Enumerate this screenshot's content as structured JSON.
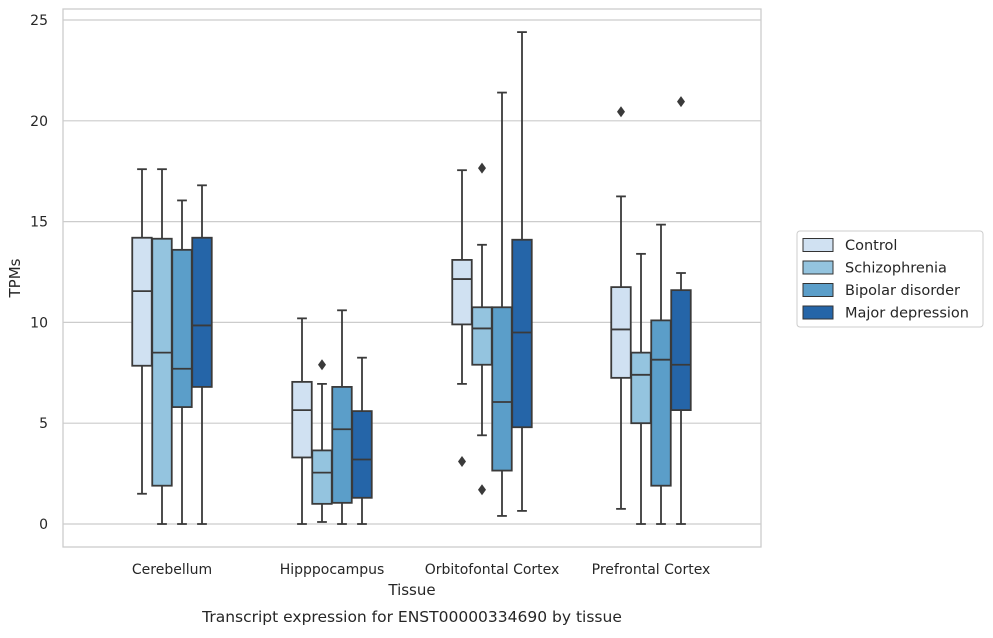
{
  "chart_data": {
    "type": "box",
    "caption": "Transcript expression for ENST00000334690 by tissue",
    "xlabel": "Tissue",
    "ylabel": "TPMs",
    "ylim": [
      -1.2,
      25.6
    ],
    "yticks": [
      0,
      5,
      10,
      15,
      20,
      25
    ],
    "grid": true,
    "legend_position": "right",
    "categories": [
      "Cerebellum",
      "Hipppocampus",
      "Orbitofontal Cortex",
      "Prefrontal Cortex"
    ],
    "series": [
      {
        "name": "Control",
        "color": "#d0e1f2",
        "boxes": [
          {
            "min": 1.5,
            "q1": 7.85,
            "median": 11.55,
            "q3": 14.2,
            "max": 17.6,
            "outliers": []
          },
          {
            "min": 0.0,
            "q1": 3.3,
            "median": 5.65,
            "q3": 7.05,
            "max": 10.2,
            "outliers": []
          },
          {
            "min": 6.95,
            "q1": 9.9,
            "median": 12.15,
            "q3": 13.1,
            "max": 17.55,
            "outliers": [
              3.1
            ]
          },
          {
            "min": 0.75,
            "q1": 7.25,
            "median": 9.65,
            "q3": 11.75,
            "max": 16.25,
            "outliers": [
              20.45
            ]
          }
        ]
      },
      {
        "name": "Schizophrenia",
        "color": "#94c4df",
        "boxes": [
          {
            "min": 0.0,
            "q1": 1.9,
            "median": 8.5,
            "q3": 14.15,
            "max": 17.6,
            "outliers": []
          },
          {
            "min": 0.1,
            "q1": 1.0,
            "median": 2.55,
            "q3": 3.65,
            "max": 6.95,
            "outliers": [
              7.9
            ]
          },
          {
            "min": 4.4,
            "q1": 7.9,
            "median": 9.7,
            "q3": 10.75,
            "max": 13.85,
            "outliers": [
              17.65,
              1.7
            ]
          },
          {
            "min": 0.0,
            "q1": 5.0,
            "median": 7.4,
            "q3": 8.5,
            "max": 13.4,
            "outliers": []
          }
        ]
      },
      {
        "name": "Bipolar disorder",
        "color": "#5b9ec9",
        "boxes": [
          {
            "min": 0.0,
            "q1": 5.8,
            "median": 7.7,
            "q3": 13.6,
            "max": 16.05,
            "outliers": []
          },
          {
            "min": 0.0,
            "q1": 1.05,
            "median": 4.7,
            "q3": 6.8,
            "max": 10.6,
            "outliers": []
          },
          {
            "min": 0.4,
            "q1": 2.65,
            "median": 6.05,
            "q3": 10.75,
            "max": 21.4,
            "outliers": []
          },
          {
            "min": 0.0,
            "q1": 1.9,
            "median": 8.15,
            "q3": 10.1,
            "max": 14.85,
            "outliers": []
          }
        ]
      },
      {
        "name": "Major depression",
        "color": "#2565a8",
        "boxes": [
          {
            "min": 0.0,
            "q1": 6.8,
            "median": 9.85,
            "q3": 14.2,
            "max": 16.8,
            "outliers": []
          },
          {
            "min": 0.0,
            "q1": 1.3,
            "median": 3.2,
            "q3": 5.6,
            "max": 8.25,
            "outliers": []
          },
          {
            "min": 0.65,
            "q1": 4.8,
            "median": 9.5,
            "q3": 14.1,
            "max": 24.4,
            "outliers": []
          },
          {
            "min": 0.0,
            "q1": 5.65,
            "median": 7.9,
            "q3": 11.6,
            "max": 12.45,
            "outliers": [
              20.95
            ]
          }
        ]
      }
    ]
  }
}
